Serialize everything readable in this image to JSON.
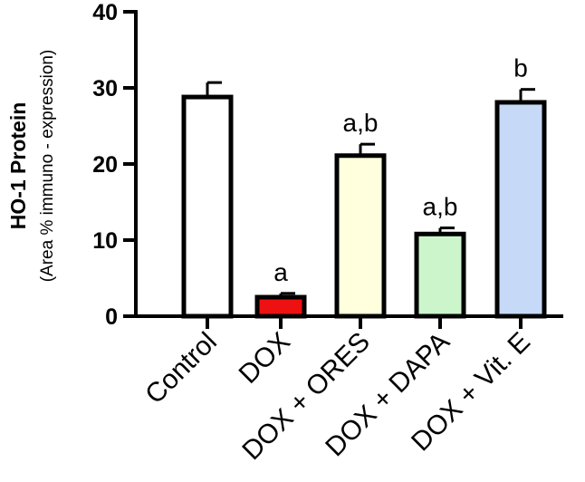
{
  "chart_data": {
    "type": "bar",
    "ylabel": "HO-1 Protein",
    "ylabel_sub": "(Area % immuno - expression)",
    "ylim": [
      0,
      40
    ],
    "yticks": [
      0,
      10,
      20,
      30,
      40
    ],
    "categories": [
      "Control",
      "DOX",
      "DOX + ORES",
      "DOX + DAPA",
      "DOX + Vit. E"
    ],
    "values": [
      28.8,
      2.5,
      21.1,
      10.8,
      28.1
    ],
    "errors": [
      1.9,
      0.5,
      1.5,
      0.8,
      1.7
    ],
    "annotations": [
      "",
      "a",
      "a,b",
      "a,b",
      "b"
    ],
    "colors": [
      "#ffffff",
      "#ee1111",
      "#ffffdd",
      "#ccf5cc",
      "#c6d9f7"
    ],
    "grid": false
  }
}
